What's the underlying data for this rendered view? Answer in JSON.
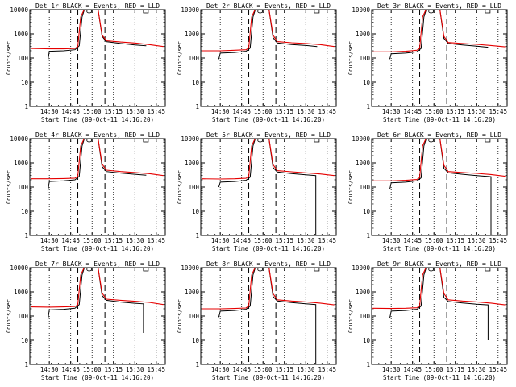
{
  "chart_data": [
    {
      "type": "line",
      "title": "Det 1r BLACK = Events, RED = LLD",
      "xlabel": "Start Time (09-Oct-11 14:16:20)",
      "ylabel": "Counts/sec",
      "x_tick_labels": [
        "14:30",
        "14:45",
        "15:00",
        "15:15",
        "15:30",
        "15:45"
      ],
      "y_tick_labels": [
        "1",
        "10",
        "100",
        "1000",
        "10000"
      ],
      "xlim_minutes_from_start": [
        0,
        95
      ],
      "ylim": [
        1,
        10000
      ],
      "y_scale": "log",
      "grid": "dotted verticals at 15-minute ticks",
      "markers": {
        "dashed_vertical_times": [
          "14:50",
          "15:09"
        ],
        "dotted_vertical_times": [
          "14:30",
          "14:45",
          "15:00",
          "15:15",
          "15:30",
          "15:45"
        ]
      },
      "series": [
        {
          "color": "#000000",
          "x": [
            "14:29",
            "14:30",
            "14:40",
            "14:48",
            "14:51",
            "14:53",
            "14:55",
            "15:04",
            "15:07",
            "15:10",
            "15:20",
            "15:30",
            "15:38"
          ],
          "y": [
            80,
            190,
            200,
            220,
            320,
            5000,
            12000,
            12000,
            800,
            480,
            400,
            350,
            320
          ]
        },
        {
          "color": "#e60000",
          "x": [
            "14:17",
            "14:30",
            "14:40",
            "14:48",
            "14:50",
            "14:52",
            "14:55",
            "15:04",
            "15:07",
            "15:10",
            "15:20",
            "15:30",
            "15:40",
            "15:50"
          ],
          "y": [
            250,
            240,
            240,
            250,
            300,
            5000,
            12000,
            12000,
            900,
            520,
            460,
            420,
            360,
            300
          ]
        }
      ]
    },
    {
      "type": "line",
      "title": "Det 2r BLACK = Events, RED = LLD",
      "xlabel": "Start Time (09-Oct-11 14:16:20)",
      "ylabel": "Counts/sec",
      "x_tick_labels": [
        "14:30",
        "14:45",
        "15:00",
        "15:15",
        "15:30",
        "15:45"
      ],
      "y_tick_labels": [
        "1",
        "10",
        "100",
        "1000",
        "10000"
      ],
      "ylim": [
        1,
        10000
      ],
      "y_scale": "log",
      "series": [
        {
          "color": "#000000",
          "x": [
            "14:29",
            "14:30",
            "14:40",
            "14:48",
            "14:51",
            "14:53",
            "14:55",
            "15:04",
            "15:07",
            "15:10",
            "15:20",
            "15:30",
            "15:38"
          ],
          "y": [
            90,
            160,
            170,
            190,
            260,
            5000,
            12000,
            12000,
            700,
            420,
            360,
            330,
            300
          ]
        },
        {
          "color": "#e60000",
          "x": [
            "14:17",
            "14:30",
            "14:40",
            "14:48",
            "14:50",
            "14:52",
            "14:55",
            "15:04",
            "15:07",
            "15:10",
            "15:20",
            "15:30",
            "15:40",
            "15:50"
          ],
          "y": [
            200,
            200,
            210,
            220,
            260,
            5000,
            12000,
            12000,
            900,
            480,
            430,
            400,
            360,
            300
          ]
        }
      ]
    },
    {
      "type": "line",
      "title": "Det 3r BLACK = Events, RED = LLD",
      "xlabel": "Start Time (09-Oct-11 14:16:20)",
      "ylabel": "Counts/sec",
      "x_tick_labels": [
        "14:30",
        "14:45",
        "15:00",
        "15:15",
        "15:30",
        "15:45"
      ],
      "y_tick_labels": [
        "1",
        "10",
        "100",
        "1000",
        "10000"
      ],
      "ylim": [
        1,
        10000
      ],
      "y_scale": "log",
      "series": [
        {
          "color": "#000000",
          "x": [
            "14:29",
            "14:30",
            "14:40",
            "14:48",
            "14:51",
            "14:53",
            "14:55",
            "15:04",
            "15:07",
            "15:10",
            "15:20",
            "15:30",
            "15:38"
          ],
          "y": [
            90,
            150,
            160,
            180,
            250,
            5000,
            12000,
            12000,
            650,
            400,
            350,
            310,
            280
          ]
        },
        {
          "color": "#e60000",
          "x": [
            "14:17",
            "14:30",
            "14:40",
            "14:48",
            "14:50",
            "14:52",
            "14:55",
            "15:04",
            "15:07",
            "15:10",
            "15:20",
            "15:30",
            "15:40",
            "15:50"
          ],
          "y": [
            180,
            180,
            190,
            210,
            250,
            5000,
            12000,
            12000,
            800,
            440,
            400,
            370,
            330,
            290
          ]
        }
      ]
    },
    {
      "type": "line",
      "title": "Det 4r BLACK = Events, RED = LLD",
      "xlabel": "Start Time (09-Oct-11 14:16:20)",
      "ylabel": "Counts/sec",
      "x_tick_labels": [
        "14:30",
        "14:45",
        "15:00",
        "15:15",
        "15:30",
        "15:45"
      ],
      "y_tick_labels": [
        "1",
        "10",
        "100",
        "1000",
        "10000"
      ],
      "ylim": [
        1,
        10000
      ],
      "y_scale": "log",
      "series": [
        {
          "color": "#000000",
          "x": [
            "14:29",
            "14:30",
            "14:40",
            "14:48",
            "14:51",
            "14:53",
            "14:55",
            "15:04",
            "15:07",
            "15:10",
            "15:20",
            "15:30",
            "15:38"
          ],
          "y": [
            70,
            170,
            180,
            200,
            280,
            5000,
            12000,
            12000,
            700,
            440,
            380,
            340,
            310
          ]
        },
        {
          "color": "#e60000",
          "x": [
            "14:17",
            "14:30",
            "14:40",
            "14:48",
            "14:50",
            "14:52",
            "14:55",
            "15:04",
            "15:07",
            "15:10",
            "15:20",
            "15:30",
            "15:40",
            "15:50"
          ],
          "y": [
            220,
            220,
            225,
            235,
            280,
            5000,
            12000,
            12000,
            900,
            500,
            440,
            400,
            360,
            300
          ]
        }
      ]
    },
    {
      "type": "line",
      "title": "Det 5r BLACK = Events, RED = LLD",
      "xlabel": "Start Time (09-Oct-11 14:16:20)",
      "ylabel": "Counts/sec",
      "x_tick_labels": [
        "14:30",
        "14:45",
        "15:00",
        "15:15",
        "15:30",
        "15:45"
      ],
      "y_tick_labels": [
        "1",
        "10",
        "100",
        "1000",
        "10000"
      ],
      "ylim": [
        1,
        10000
      ],
      "y_scale": "log",
      "series": [
        {
          "color": "#000000",
          "x": [
            "14:29",
            "14:30",
            "14:40",
            "14:48",
            "14:51",
            "14:53",
            "14:55",
            "15:04",
            "15:07",
            "15:10",
            "15:20",
            "15:30",
            "15:37",
            "15:37"
          ],
          "y": [
            100,
            160,
            170,
            190,
            260,
            5000,
            12000,
            12000,
            650,
            420,
            360,
            320,
            300,
            1
          ]
        },
        {
          "color": "#e60000",
          "x": [
            "14:17",
            "14:30",
            "14:40",
            "14:48",
            "14:50",
            "14:52",
            "14:55",
            "15:04",
            "15:07",
            "15:10",
            "15:20",
            "15:30",
            "15:40",
            "15:50"
          ],
          "y": [
            220,
            215,
            220,
            230,
            270,
            5000,
            12000,
            12000,
            850,
            480,
            430,
            390,
            350,
            300
          ]
        }
      ]
    },
    {
      "type": "line",
      "title": "Det 6r BLACK = Events, RED = LLD",
      "xlabel": "Start Time (09-Oct-11 14:16:20)",
      "ylabel": "Counts/sec",
      "x_tick_labels": [
        "14:30",
        "14:45",
        "15:00",
        "15:15",
        "15:30",
        "15:45"
      ],
      "y_tick_labels": [
        "1",
        "10",
        "100",
        "1000",
        "10000"
      ],
      "ylim": [
        1,
        10000
      ],
      "y_scale": "log",
      "series": [
        {
          "color": "#000000",
          "x": [
            "14:29",
            "14:30",
            "14:40",
            "14:48",
            "14:51",
            "14:53",
            "14:55",
            "15:04",
            "15:07",
            "15:10",
            "15:20",
            "15:30",
            "15:40",
            "15:40"
          ],
          "y": [
            80,
            150,
            160,
            180,
            240,
            5000,
            12000,
            12000,
            600,
            390,
            340,
            300,
            270,
            1
          ]
        },
        {
          "color": "#e60000",
          "x": [
            "14:17",
            "14:30",
            "14:40",
            "14:48",
            "14:50",
            "14:52",
            "14:55",
            "15:04",
            "15:07",
            "15:10",
            "15:20",
            "15:30",
            "15:40",
            "15:50"
          ],
          "y": [
            180,
            180,
            190,
            205,
            245,
            5000,
            12000,
            12000,
            800,
            440,
            400,
            370,
            330,
            280
          ]
        }
      ]
    },
    {
      "type": "line",
      "title": "Det 7r BLACK = Events, RED = LLD",
      "xlabel": "Start Time (09-Oct-11 14:16:20)",
      "ylabel": "Counts/sec",
      "x_tick_labels": [
        "14:30",
        "14:45",
        "15:00",
        "15:15",
        "15:30",
        "15:45"
      ],
      "y_tick_labels": [
        "1",
        "10",
        "100",
        "1000",
        "10000"
      ],
      "ylim": [
        1,
        10000
      ],
      "y_scale": "log",
      "series": [
        {
          "color": "#000000",
          "x": [
            "14:29",
            "14:30",
            "14:40",
            "14:48",
            "14:51",
            "14:53",
            "14:55",
            "15:04",
            "15:07",
            "15:10",
            "15:20",
            "15:30",
            "15:36",
            "15:36"
          ],
          "y": [
            70,
            180,
            190,
            210,
            300,
            5000,
            12000,
            12000,
            700,
            450,
            380,
            340,
            320,
            20
          ]
        },
        {
          "color": "#e60000",
          "x": [
            "14:17",
            "14:30",
            "14:40",
            "14:48",
            "14:50",
            "14:52",
            "14:55",
            "15:04",
            "15:07",
            "15:10",
            "15:20",
            "15:30",
            "15:40",
            "15:50"
          ],
          "y": [
            240,
            235,
            240,
            250,
            290,
            5000,
            12000,
            12000,
            900,
            500,
            450,
            410,
            370,
            300
          ]
        }
      ]
    },
    {
      "type": "line",
      "title": "Det 8r BLACK = Events, RED = LLD",
      "xlabel": "Start Time (09-Oct-11 14:16:20)",
      "ylabel": "Counts/sec",
      "x_tick_labels": [
        "14:30",
        "14:45",
        "15:00",
        "15:15",
        "15:30",
        "15:45"
      ],
      "y_tick_labels": [
        "1",
        "10",
        "100",
        "1000",
        "10000"
      ],
      "ylim": [
        1,
        10000
      ],
      "y_scale": "log",
      "series": [
        {
          "color": "#000000",
          "x": [
            "14:29",
            "14:30",
            "14:40",
            "14:48",
            "14:51",
            "14:53",
            "14:55",
            "15:04",
            "15:07",
            "15:10",
            "15:20",
            "15:30",
            "15:37",
            "15:37"
          ],
          "y": [
            90,
            160,
            170,
            190,
            260,
            5000,
            12000,
            12000,
            650,
            420,
            360,
            320,
            300,
            1
          ]
        },
        {
          "color": "#e60000",
          "x": [
            "14:17",
            "14:30",
            "14:40",
            "14:48",
            "14:50",
            "14:52",
            "14:55",
            "15:04",
            "15:07",
            "15:10",
            "15:20",
            "15:30",
            "15:40",
            "15:50"
          ],
          "y": [
            200,
            200,
            205,
            215,
            260,
            5000,
            12000,
            12000,
            850,
            470,
            420,
            385,
            345,
            290
          ]
        }
      ]
    },
    {
      "type": "line",
      "title": "Det 9r BLACK = Events, RED = LLD",
      "xlabel": "Start Time (09-Oct-11 14:16:20)",
      "ylabel": "Counts/sec",
      "x_tick_labels": [
        "14:30",
        "14:45",
        "15:00",
        "15:15",
        "15:30",
        "15:45"
      ],
      "y_tick_labels": [
        "1",
        "10",
        "100",
        "1000",
        "10000"
      ],
      "ylim": [
        1,
        10000
      ],
      "y_scale": "log",
      "series": [
        {
          "color": "#000000",
          "x": [
            "14:29",
            "14:30",
            "14:40",
            "14:48",
            "14:51",
            "14:53",
            "14:55",
            "15:04",
            "15:07",
            "15:10",
            "15:20",
            "15:30",
            "15:38",
            "15:38"
          ],
          "y": [
            80,
            160,
            170,
            190,
            260,
            5000,
            12000,
            12000,
            600,
            400,
            350,
            310,
            290,
            10
          ]
        },
        {
          "color": "#e60000",
          "x": [
            "14:17",
            "14:30",
            "14:40",
            "14:48",
            "14:50",
            "14:52",
            "14:55",
            "15:04",
            "15:07",
            "15:10",
            "15:20",
            "15:30",
            "15:40",
            "15:50"
          ],
          "y": [
            210,
            205,
            210,
            220,
            260,
            5000,
            12000,
            12000,
            850,
            470,
            420,
            385,
            345,
            290
          ]
        }
      ]
    }
  ]
}
